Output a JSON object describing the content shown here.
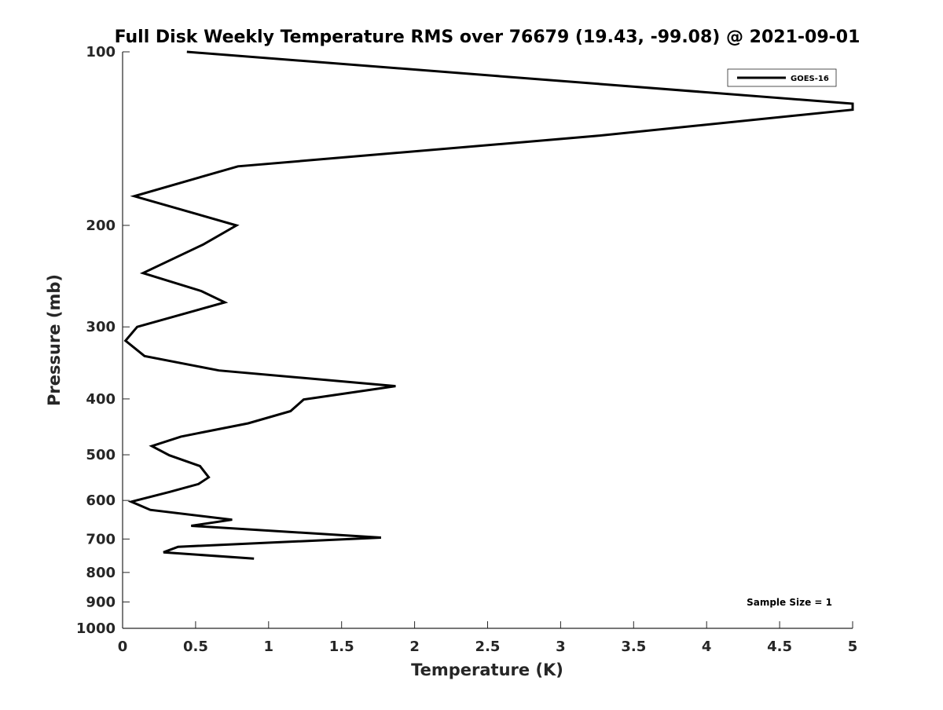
{
  "chart_data": {
    "type": "line",
    "title": "Full Disk Weekly Temperature RMS over 76679 (19.43, -99.08) @ 2021-09-01",
    "xlabel": "Temperature (K)",
    "ylabel": "Pressure (mb)",
    "xlim": [
      0,
      5
    ],
    "ylim": [
      100,
      1000
    ],
    "y_scale": "log",
    "y_reversed": true,
    "x_ticks": [
      0,
      0.5,
      1,
      1.5,
      2,
      2.5,
      3,
      3.5,
      4,
      4.5,
      5
    ],
    "x_tick_labels": [
      "0",
      "0.5",
      "1",
      "1.5",
      "2",
      "2.5",
      "3",
      "3.5",
      "4",
      "4.5",
      "5"
    ],
    "y_ticks": [
      100,
      200,
      300,
      400,
      500,
      600,
      700,
      800,
      900,
      1000
    ],
    "y_tick_labels": [
      "100",
      "200",
      "300",
      "400",
      "500",
      "600",
      "700",
      "800",
      "900",
      "1000"
    ],
    "grid": false,
    "legend_position": "top-right",
    "series": [
      {
        "name": "GOES-16",
        "color": "#000000",
        "points": [
          {
            "x": 0.44,
            "y": 100
          },
          {
            "x": 5.0,
            "y": 123
          },
          {
            "x": 5.0,
            "y": 126
          },
          {
            "x": 3.23,
            "y": 140
          },
          {
            "x": 0.79,
            "y": 158
          },
          {
            "x": 0.08,
            "y": 178
          },
          {
            "x": 0.78,
            "y": 200
          },
          {
            "x": 0.55,
            "y": 216
          },
          {
            "x": 0.14,
            "y": 242
          },
          {
            "x": 0.54,
            "y": 260
          },
          {
            "x": 0.7,
            "y": 272
          },
          {
            "x": 0.1,
            "y": 300
          },
          {
            "x": 0.02,
            "y": 317
          },
          {
            "x": 0.15,
            "y": 337
          },
          {
            "x": 0.66,
            "y": 357
          },
          {
            "x": 1.87,
            "y": 380
          },
          {
            "x": 1.24,
            "y": 401
          },
          {
            "x": 1.15,
            "y": 420
          },
          {
            "x": 0.86,
            "y": 441
          },
          {
            "x": 0.4,
            "y": 465
          },
          {
            "x": 0.2,
            "y": 483
          },
          {
            "x": 0.32,
            "y": 501
          },
          {
            "x": 0.53,
            "y": 523
          },
          {
            "x": 0.59,
            "y": 547
          },
          {
            "x": 0.52,
            "y": 562
          },
          {
            "x": 0.32,
            "y": 580
          },
          {
            "x": 0.06,
            "y": 603
          },
          {
            "x": 0.19,
            "y": 623
          },
          {
            "x": 0.75,
            "y": 648
          },
          {
            "x": 0.47,
            "y": 664
          },
          {
            "x": 1.77,
            "y": 696
          },
          {
            "x": 0.38,
            "y": 722
          },
          {
            "x": 0.28,
            "y": 738
          },
          {
            "x": 0.9,
            "y": 757
          }
        ]
      }
    ],
    "annotations": [
      {
        "text": "Sample Size = 1",
        "position": "bottom-right"
      }
    ]
  }
}
